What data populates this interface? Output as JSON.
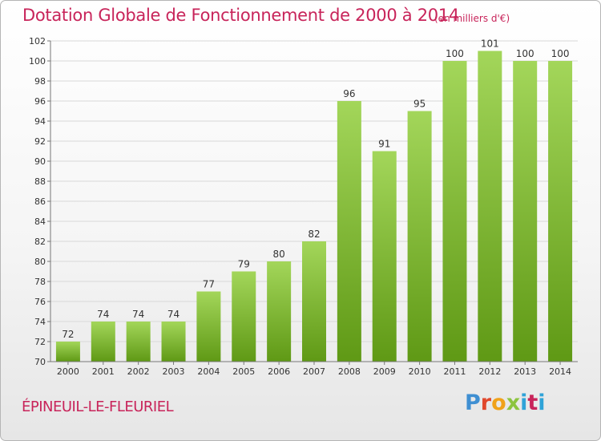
{
  "header": {
    "title": "Dotation Globale de Fonctionnement de 2000 à 2014",
    "subtitle": "(en milliers d'€)"
  },
  "footer": {
    "commune": "ÉPINEUIL-LE-FLEURIEL",
    "logo_letters": [
      "P",
      "r",
      "o",
      "x",
      "i",
      "t",
      "i"
    ]
  },
  "colors": {
    "title": "#c8245a",
    "bar_top": "#a3d65a",
    "bar_bottom": "#5f9915",
    "grid": "#d8d8d8"
  },
  "chart_data": {
    "type": "bar",
    "title": "Dotation Globale de Fonctionnement de 2000 à 2014",
    "xlabel": "",
    "ylabel": "",
    "categories": [
      "2000",
      "2001",
      "2002",
      "2003",
      "2004",
      "2005",
      "2006",
      "2007",
      "2008",
      "2009",
      "2010",
      "2011",
      "2012",
      "2013",
      "2014"
    ],
    "values": [
      72,
      74,
      74,
      74,
      77,
      79,
      80,
      82,
      96,
      91,
      95,
      100,
      101,
      100,
      100
    ],
    "ylim": [
      70,
      102
    ],
    "yticks": [
      70,
      72,
      74,
      76,
      78,
      80,
      82,
      84,
      86,
      88,
      90,
      92,
      94,
      96,
      98,
      100,
      102
    ],
    "grid": true,
    "data_labels": true
  }
}
